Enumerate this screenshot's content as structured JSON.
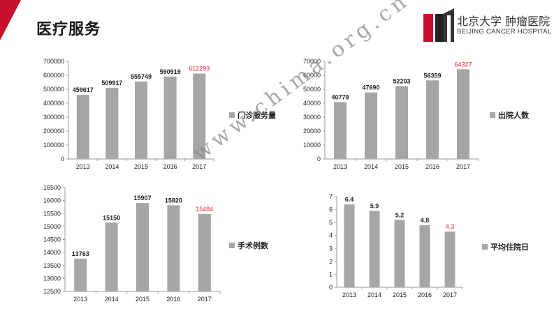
{
  "page": {
    "title": "医疗服务",
    "logo_cn": "北京大学 肿瘤医院",
    "logo_en": "BEIJING CANCER HOSPITAL",
    "watermark": "www.chima.org.cn",
    "bar_color": "#a6a6a6",
    "highlight_color": "#e0282e",
    "accent_color": "#c8102e"
  },
  "chart_data": [
    {
      "type": "bar",
      "legend": "门诊服务量",
      "categories": [
        "2013",
        "2014",
        "2015",
        "2016",
        "2017"
      ],
      "values": [
        459617,
        509917,
        555749,
        590919,
        612293
      ],
      "labels": [
        "459617",
        "509917",
        "555749",
        "590919",
        "612293"
      ],
      "ylim": [
        0,
        700000
      ],
      "yticks": [
        "0",
        "100000",
        "200000",
        "300000",
        "400000",
        "500000",
        "600000",
        "700000"
      ],
      "highlight_last": true,
      "grid": false
    },
    {
      "type": "bar",
      "legend": "出院人数",
      "categories": [
        "2013",
        "2014",
        "2015",
        "2016",
        "2017"
      ],
      "values": [
        40779,
        47690,
        52203,
        56359,
        64327
      ],
      "labels": [
        "40779",
        "47690",
        "52203",
        "56359",
        "64327"
      ],
      "ylim": [
        0,
        70000
      ],
      "yticks": [
        "0",
        "10000",
        "20000",
        "30000",
        "40000",
        "50000",
        "60000",
        "70000"
      ],
      "highlight_last": true,
      "grid": false
    },
    {
      "type": "bar",
      "legend": "手术例数",
      "categories": [
        "2013",
        "2014",
        "2015",
        "2016",
        "2017"
      ],
      "values": [
        13763,
        15150,
        15907,
        15820,
        15484
      ],
      "labels": [
        "13763",
        "15150",
        "15907",
        "15820",
        "15484"
      ],
      "ylim": [
        12500,
        16500
      ],
      "yticks": [
        "12500",
        "13000",
        "13500",
        "14000",
        "14500",
        "15000",
        "15500",
        "16000",
        "16500"
      ],
      "highlight_last": true,
      "grid": false
    },
    {
      "type": "bar",
      "legend": "平均住院日",
      "categories": [
        "2013",
        "2014",
        "2015",
        "2016",
        "2017"
      ],
      "values": [
        6.4,
        5.9,
        5.2,
        4.8,
        4.3
      ],
      "labels": [
        "6.4",
        "5.9",
        "5.2",
        "4.8",
        "4.3"
      ],
      "ylim": [
        0,
        7
      ],
      "yticks": [
        "0",
        "1",
        "2",
        "3",
        "4",
        "5",
        "6",
        "7"
      ],
      "highlight_last": true,
      "grid": false
    }
  ]
}
